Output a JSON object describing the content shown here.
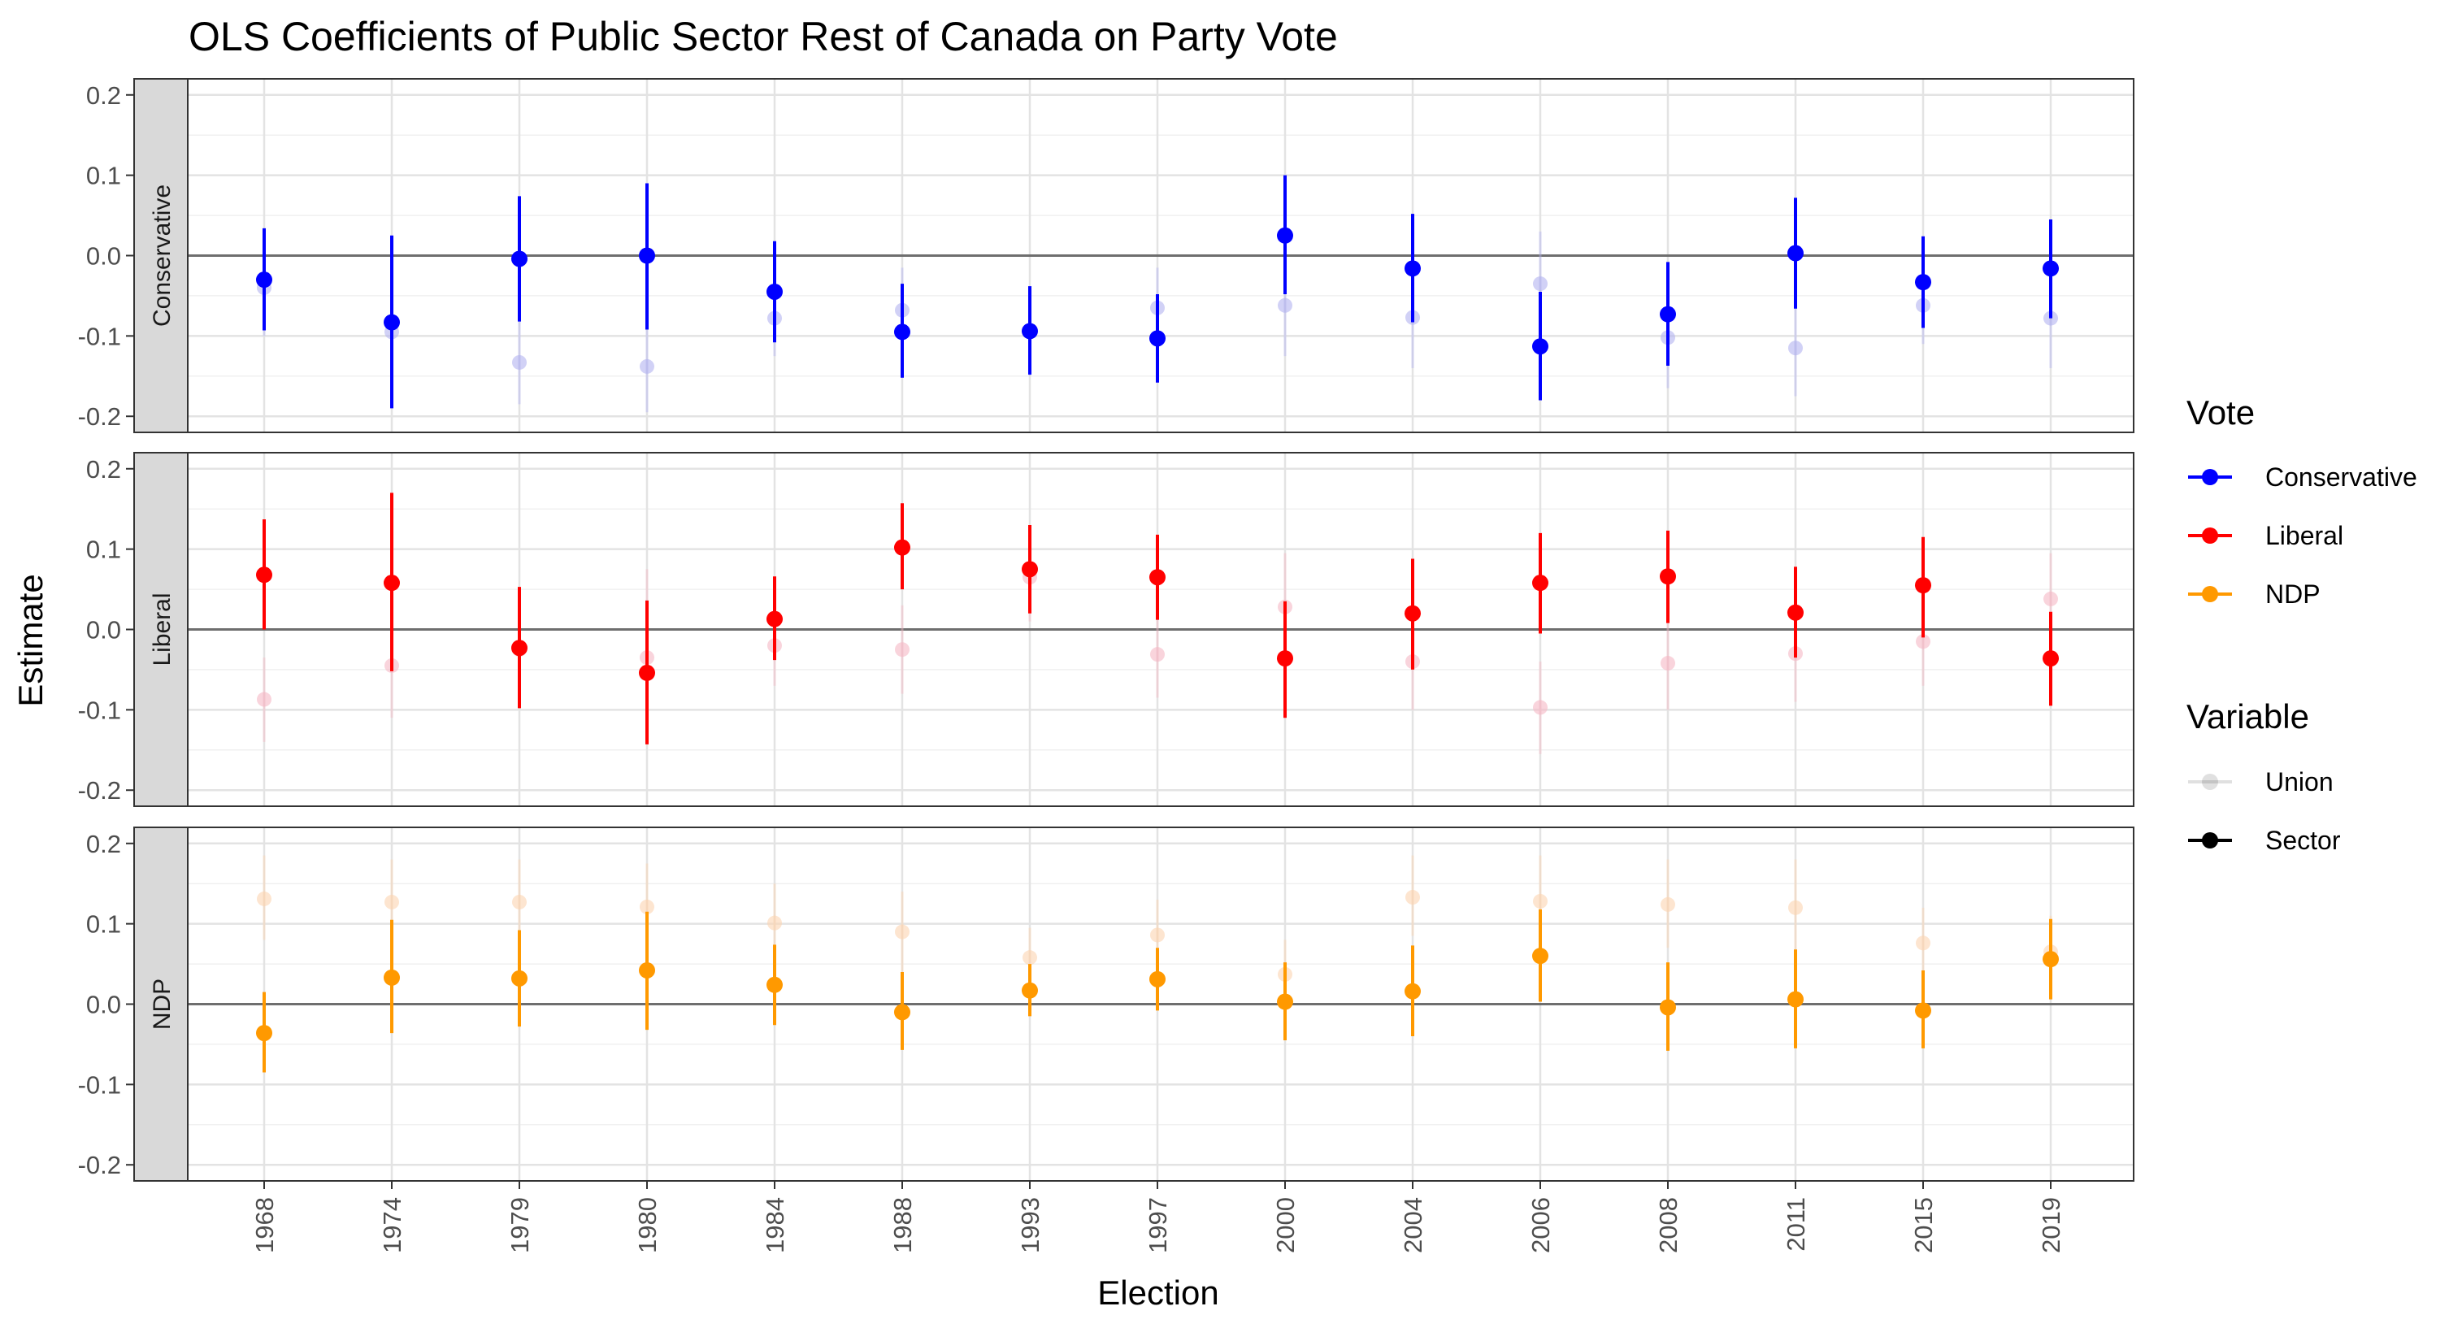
{
  "chart_data": {
    "type": "scatter",
    "title": "OLS Coefficients of Public Sector Rest of Canada on Party Vote",
    "xlabel": "Election",
    "ylabel": "Estimate",
    "ylim": [
      -0.22,
      0.22
    ],
    "yticks": [
      "-0.2",
      "-0.1",
      "0.0",
      "0.1",
      "0.2"
    ],
    "ytick_values": [
      -0.2,
      -0.1,
      0.0,
      0.1,
      0.2
    ],
    "categories": [
      "1968",
      "1974",
      "1979",
      "1980",
      "1984",
      "1988",
      "1993",
      "1997",
      "2000",
      "2004",
      "2006",
      "2008",
      "2011",
      "2015",
      "2019"
    ],
    "grid": true,
    "reference_line": 0.0,
    "legend": {
      "placement": "right",
      "vote_title": "Vote",
      "vote_entries": [
        {
          "label": "Conservative",
          "color": "#0000ff"
        },
        {
          "label": "Liberal",
          "color": "#ff0000"
        },
        {
          "label": "NDP",
          "color": "#ff9900"
        }
      ],
      "variable_title": "Variable",
      "variable_entries": [
        {
          "label": "Union",
          "opacity": 0.12
        },
        {
          "label": "Sector",
          "opacity": 1.0
        }
      ]
    },
    "panels": [
      {
        "name": "Conservative",
        "color": "#0000ff",
        "union_color": "#b3b3f0",
        "sector": {
          "estimate": [
            -0.03,
            -0.083,
            -0.004,
            0.0,
            -0.045,
            -0.095,
            -0.094,
            -0.103,
            0.025,
            -0.016,
            -0.113,
            -0.073,
            0.003,
            -0.033,
            -0.016
          ],
          "lower": [
            -0.093,
            -0.19,
            -0.082,
            -0.092,
            -0.108,
            -0.152,
            -0.148,
            -0.158,
            -0.048,
            -0.083,
            -0.18,
            -0.137,
            -0.066,
            -0.09,
            -0.078
          ],
          "upper": [
            0.034,
            0.025,
            0.074,
            0.09,
            0.018,
            -0.035,
            -0.038,
            -0.048,
            0.1,
            0.052,
            -0.045,
            -0.008,
            0.072,
            0.024,
            0.045
          ]
        },
        "union": {
          "estimate": [
            -0.04,
            -0.095,
            -0.133,
            -0.138,
            -0.078,
            -0.068,
            -0.095,
            -0.065,
            -0.062,
            -0.077,
            -0.035,
            -0.102,
            -0.115,
            -0.062,
            -0.078
          ],
          "lower": [
            -0.1,
            -0.19,
            -0.185,
            -0.195,
            -0.125,
            -0.12,
            -0.15,
            -0.115,
            -0.125,
            -0.14,
            -0.1,
            -0.165,
            -0.175,
            -0.11,
            -0.14
          ],
          "upper": [
            0.02,
            0.0,
            -0.08,
            -0.08,
            -0.03,
            -0.015,
            -0.04,
            -0.015,
            0.0,
            -0.015,
            0.03,
            -0.04,
            -0.055,
            -0.015,
            -0.015
          ]
        }
      },
      {
        "name": "Liberal",
        "color": "#ff0000",
        "union_color": "#f5b8c4",
        "sector": {
          "estimate": [
            0.068,
            0.058,
            -0.023,
            -0.054,
            0.013,
            0.102,
            0.075,
            0.065,
            -0.036,
            0.02,
            0.058,
            0.066,
            0.021,
            0.055,
            -0.036
          ],
          "lower": [
            0.0,
            -0.052,
            -0.098,
            -0.143,
            -0.038,
            0.05,
            0.02,
            0.012,
            -0.11,
            -0.05,
            -0.005,
            0.008,
            -0.035,
            -0.01,
            -0.095
          ],
          "upper": [
            0.137,
            0.17,
            0.053,
            0.036,
            0.066,
            0.157,
            0.13,
            0.118,
            0.035,
            0.088,
            0.12,
            0.123,
            0.078,
            0.115,
            0.022
          ]
        },
        "union": {
          "estimate": [
            -0.087,
            -0.045,
            -0.025,
            -0.035,
            -0.02,
            -0.025,
            0.065,
            -0.031,
            0.028,
            -0.04,
            -0.097,
            -0.042,
            -0.03,
            -0.015,
            0.038
          ],
          "lower": [
            -0.14,
            -0.11,
            -0.08,
            -0.1,
            -0.07,
            -0.08,
            0.01,
            -0.085,
            -0.04,
            -0.1,
            -0.155,
            -0.1,
            -0.09,
            -0.07,
            -0.02
          ],
          "upper": [
            -0.035,
            0.02,
            0.03,
            0.075,
            0.03,
            0.03,
            0.12,
            0.025,
            0.095,
            0.02,
            -0.04,
            0.015,
            0.03,
            0.04,
            0.095
          ]
        }
      },
      {
        "name": "NDP",
        "color": "#ff9900",
        "union_color": "#fbd3b0",
        "sector": {
          "estimate": [
            -0.036,
            0.033,
            0.032,
            0.042,
            0.024,
            -0.01,
            0.017,
            0.031,
            0.003,
            0.016,
            0.06,
            -0.004,
            0.006,
            -0.008,
            0.056
          ],
          "lower": [
            -0.085,
            -0.036,
            -0.028,
            -0.032,
            -0.026,
            -0.057,
            -0.015,
            -0.008,
            -0.045,
            -0.04,
            0.003,
            -0.058,
            -0.055,
            -0.055,
            0.006
          ],
          "upper": [
            0.015,
            0.105,
            0.092,
            0.115,
            0.074,
            0.04,
            0.05,
            0.07,
            0.052,
            0.073,
            0.118,
            0.052,
            0.068,
            0.042,
            0.106
          ]
        },
        "union": {
          "estimate": [
            0.131,
            0.127,
            0.127,
            0.121,
            0.101,
            0.09,
            0.058,
            0.086,
            0.037,
            0.133,
            0.128,
            0.124,
            0.12,
            0.076,
            0.065
          ],
          "lower": [
            0.08,
            0.075,
            0.075,
            0.07,
            0.055,
            0.04,
            0.02,
            0.045,
            -0.005,
            0.085,
            0.075,
            0.07,
            0.065,
            0.03,
            0.02
          ],
          "upper": [
            0.185,
            0.18,
            0.18,
            0.175,
            0.15,
            0.14,
            0.095,
            0.13,
            0.08,
            0.185,
            0.185,
            0.18,
            0.18,
            0.12,
            0.11
          ]
        }
      }
    ]
  }
}
